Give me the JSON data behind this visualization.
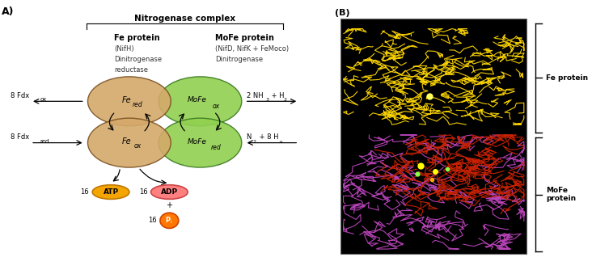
{
  "fig_width": 7.32,
  "fig_height": 3.34,
  "panel_A": {
    "label": "A)",
    "title": "Nitrogenase complex",
    "fe_protein_label": "Fe protein",
    "fe_protein_sub1": "(NifH)",
    "fe_protein_sub2": "Dinitrogenase",
    "fe_protein_sub3": "reductase",
    "mofe_protein_label": "MoFe protein",
    "mofe_protein_sub1": "(NifD, NifK + FeMoco)",
    "mofe_protein_sub2": "Dinitrogenase",
    "fe_color": "#D4A96A",
    "fe_edge_color": "#7A5020",
    "mofe_color": "#90D050",
    "mofe_edge_color": "#3A7A20",
    "fe_red_label": "Fe",
    "fe_ox_label": "Fe",
    "mofe_ox_label": "MoFe",
    "mofe_red_label": "MoFe",
    "left_top_label": "8 Fdx",
    "left_top_sub": "ox",
    "left_bot_label": "8 Fdx",
    "left_bot_sub": "red",
    "right_top_label": "2 NH",
    "right_top_rest": " + H",
    "right_bot_label": "N",
    "right_bot_rest": " + 8 H",
    "atp_bg": "#F5A500",
    "atp_edge": "#C07800",
    "adp_bg": "#FF8080",
    "adp_edge": "#CC4444",
    "pi_bg": "#FF7700",
    "pi_edge": "#CC4400"
  },
  "panel_B": {
    "label": "(B)",
    "fe_protein_label": "Fe protein",
    "mofe_protein_label": "MoFe\nprotein",
    "yellow_color": "#FFD700",
    "purple_color": "#BB44BB",
    "red_color": "#CC2200"
  }
}
